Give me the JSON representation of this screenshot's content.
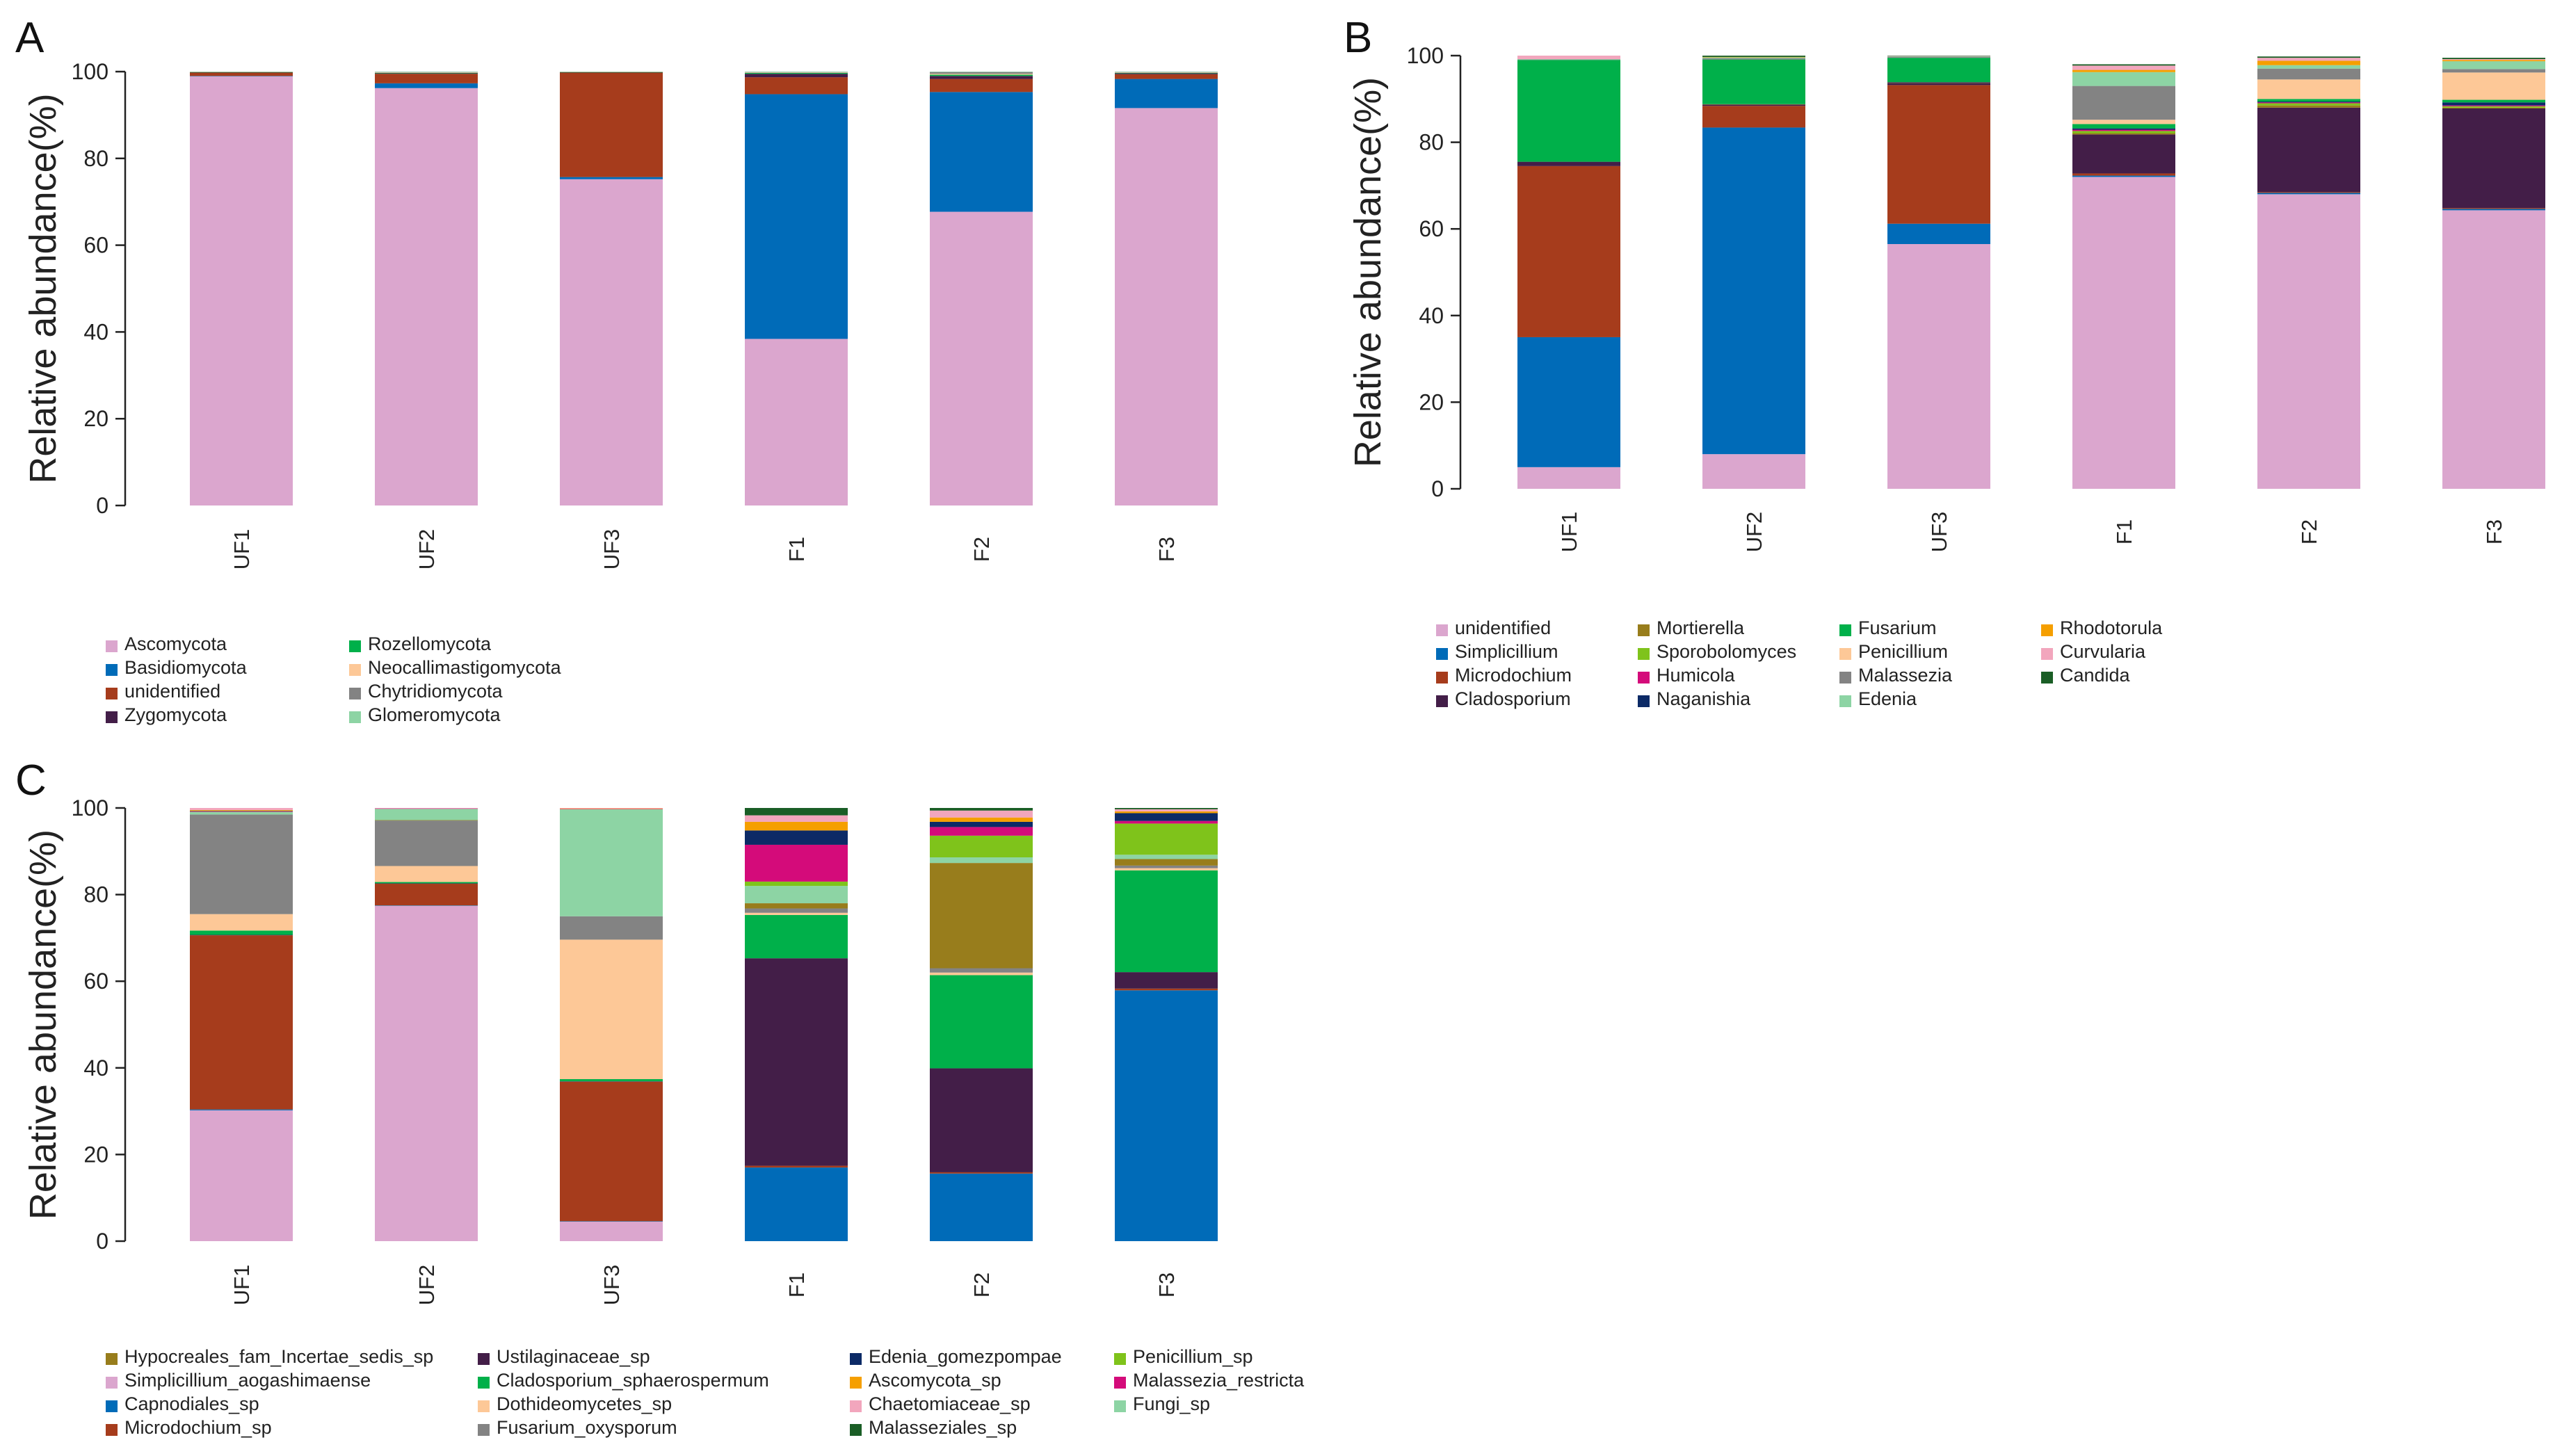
{
  "colors": {
    "pink": "#dba6ce",
    "blue": "#006bb8",
    "brown": "#a63c1c",
    "purple": "#431e48",
    "green": "#00b04a",
    "peach": "#fdc897",
    "gray": "#838383",
    "mint": "#8dd4a4",
    "olive": "#987d1c",
    "lime": "#7fc31b",
    "magenta": "#d40b7a",
    "navy": "#0c2a66",
    "orange": "#f59f00",
    "lightpink": "#f2a6bd",
    "darkgreen": "#1a5e26"
  },
  "chart_data": [
    {
      "id": "A",
      "type": "bar",
      "title": "A",
      "ylabel": "Relative abundance(%)",
      "ylim": [
        0,
        100
      ],
      "yticks": [
        0,
        20,
        40,
        60,
        80,
        100
      ],
      "categories": [
        "UF1",
        "UF2",
        "UF3",
        "F1",
        "F2",
        "F3"
      ],
      "series": [
        {
          "name": "Ascomycota",
          "color": "pink",
          "values": [
            98.9,
            96.2,
            75.2,
            38.4,
            67.7,
            91.6
          ]
        },
        {
          "name": "Basidiomycota",
          "color": "blue",
          "values": [
            0.1,
            1.1,
            0.5,
            56.4,
            27.6,
            6.7
          ]
        },
        {
          "name": "unidentified",
          "color": "brown",
          "values": [
            0.8,
            2.2,
            24.1,
            3.9,
            3.0,
            1.1
          ]
        },
        {
          "name": "Zygomycota",
          "color": "purple",
          "values": [
            0.05,
            0.1,
            0.05,
            0.8,
            0.7,
            0.2
          ]
        },
        {
          "name": "Rozellomycota",
          "color": "green",
          "values": [
            0.05,
            0.1,
            0.05,
            0.2,
            0.3,
            0.1
          ]
        },
        {
          "name": "Neocallimastigomycota",
          "color": "peach",
          "values": [
            0.05,
            0.1,
            0.05,
            0.1,
            0.2,
            0.1
          ]
        },
        {
          "name": "Chytridiomycota",
          "color": "gray",
          "values": [
            0.03,
            0.1,
            0.03,
            0.1,
            0.4,
            0.1
          ]
        },
        {
          "name": "Glomeromycota",
          "color": "mint",
          "values": [
            0.02,
            0.1,
            0.02,
            0.1,
            0.1,
            0.1
          ]
        }
      ],
      "legend": {
        "columns": [
          [
            "Ascomycota",
            "Basidiomycota",
            "unidentified",
            "Zygomycota"
          ],
          [
            "Rozellomycota",
            "Neocallimastigomycota",
            "Chytridiomycota",
            "Glomeromycota"
          ]
        ]
      }
    },
    {
      "id": "B",
      "type": "bar",
      "title": "B",
      "ylabel": "Relative abundance(%)",
      "ylim": [
        0,
        100
      ],
      "yticks": [
        0,
        20,
        40,
        60,
        80,
        100
      ],
      "categories": [
        "UF1",
        "UF2",
        "UF3",
        "F1",
        "F2",
        "F3"
      ],
      "series": [
        {
          "name": "unidentified",
          "color": "pink",
          "values": [
            5.0,
            8.0,
            56.5,
            72.0,
            68.0,
            64.3
          ]
        },
        {
          "name": "Simplicillium",
          "color": "blue",
          "values": [
            30.0,
            75.4,
            4.7,
            0.3,
            0.3,
            0.3
          ]
        },
        {
          "name": "Microdochium",
          "color": "brown",
          "values": [
            39.5,
            5.0,
            32.0,
            0.5,
            0.2,
            0.2
          ]
        },
        {
          "name": "Cladosporium",
          "color": "purple",
          "values": [
            1.0,
            0.3,
            0.5,
            9.0,
            19.5,
            23.0
          ]
        },
        {
          "name": "Mortierella",
          "color": "olive",
          "values": [
            0.0,
            0.1,
            0.1,
            0.3,
            0.5,
            0.2
          ]
        },
        {
          "name": "Sporobolomyces",
          "color": "lime",
          "values": [
            0.0,
            0.0,
            0.0,
            0.5,
            0.5,
            0.3
          ]
        },
        {
          "name": "Humicola",
          "color": "magenta",
          "values": [
            0.0,
            0.0,
            0.0,
            0.3,
            0.2,
            0.2
          ]
        },
        {
          "name": "Naganishia",
          "color": "navy",
          "values": [
            0.0,
            0.0,
            0.1,
            0.3,
            0.2,
            0.7
          ]
        },
        {
          "name": "Fusarium",
          "color": "green",
          "values": [
            23.5,
            10.3,
            5.6,
            1.0,
            0.6,
            0.6
          ]
        },
        {
          "name": "Penicillium",
          "color": "peach",
          "values": [
            0.0,
            0.0,
            0.0,
            1.0,
            4.5,
            6.3
          ]
        },
        {
          "name": "Malassezia",
          "color": "gray",
          "values": [
            0.1,
            0.3,
            0.2,
            7.8,
            2.5,
            0.8
          ]
        },
        {
          "name": "Edenia",
          "color": "mint",
          "values": [
            0.1,
            0.2,
            0.1,
            3.2,
            0.8,
            1.8
          ]
        },
        {
          "name": "Rhodotorula",
          "color": "orange",
          "values": [
            0.0,
            0.1,
            0.0,
            0.5,
            1.0,
            0.3
          ]
        },
        {
          "name": "Curvularia",
          "color": "lightpink",
          "values": [
            0.8,
            0.0,
            0.1,
            1.0,
            0.7,
            0.2
          ]
        },
        {
          "name": "Candida",
          "color": "darkgreen",
          "values": [
            0.0,
            0.3,
            0.1,
            0.3,
            0.3,
            0.3
          ]
        }
      ],
      "legend": {
        "columns": [
          [
            "unidentified",
            "Simplicillium",
            "Microdochium",
            "Cladosporium"
          ],
          [
            "Mortierella",
            "Sporobolomyces",
            "Humicola",
            "Naganishia"
          ],
          [
            "Fusarium",
            "Penicillium",
            "Malassezia",
            "Edenia"
          ],
          [
            "Rhodotorula",
            "Curvularia",
            "Candida"
          ]
        ]
      }
    },
    {
      "id": "C",
      "type": "bar",
      "title": "C",
      "ylabel": "Relative abundance(%)",
      "ylim": [
        0,
        100
      ],
      "yticks": [
        0,
        20,
        40,
        60,
        80,
        100
      ],
      "categories": [
        "UF1",
        "UF2",
        "UF3",
        "F1",
        "F2",
        "F3"
      ],
      "series": [
        {
          "name": "Simplicillium_aogashimaense",
          "color": "pink",
          "values": [
            30.2,
            77.4,
            4.5,
            0.0,
            0.0,
            0.0
          ]
        },
        {
          "name": "Capnodiales_sp",
          "color": "blue",
          "values": [
            0.2,
            0.1,
            0.1,
            17.0,
            15.6,
            57.9
          ]
        },
        {
          "name": "Microdochium_sp",
          "color": "brown",
          "values": [
            40.2,
            5.0,
            32.2,
            0.4,
            0.3,
            0.4
          ]
        },
        {
          "name": "Ustilaginaceae_sp",
          "color": "purple",
          "values": [
            0.1,
            0.1,
            0.1,
            47.9,
            24.0,
            3.8
          ]
        },
        {
          "name": "Cladosporium_sphaerospermum",
          "color": "green",
          "values": [
            1.0,
            0.3,
            0.5,
            10.0,
            21.5,
            23.5
          ]
        },
        {
          "name": "Dothideomycetes_sp",
          "color": "peach",
          "values": [
            3.8,
            3.7,
            32.2,
            0.5,
            0.6,
            0.5
          ]
        },
        {
          "name": "Fusarium_oxysporum",
          "color": "gray",
          "values": [
            23.0,
            10.5,
            5.4,
            1.0,
            1.0,
            0.6
          ]
        },
        {
          "name": "Hypocreales_fam_Incertae_sedis_sp",
          "color": "olive",
          "values": [
            0.0,
            0.1,
            0.0,
            1.2,
            24.3,
            1.5
          ]
        },
        {
          "name": "Fungi_sp",
          "color": "mint",
          "values": [
            0.6,
            2.6,
            24.7,
            4.0,
            1.3,
            1.0
          ]
        },
        {
          "name": "Penicillium_sp",
          "color": "lime",
          "values": [
            0.0,
            0.0,
            0.0,
            1.0,
            5.0,
            7.2
          ]
        },
        {
          "name": "Malassezia_restricta",
          "color": "magenta",
          "values": [
            0.1,
            0.1,
            0.1,
            8.5,
            2.0,
            0.6
          ]
        },
        {
          "name": "Edenia_gomezpompae",
          "color": "navy",
          "values": [
            0.1,
            0.0,
            0.0,
            3.3,
            1.2,
            1.8
          ]
        },
        {
          "name": "Ascomycota_sp",
          "color": "orange",
          "values": [
            0.2,
            0.0,
            0.1,
            2.0,
            1.0,
            0.4
          ]
        },
        {
          "name": "Chaetomiaceae_sp",
          "color": "lightpink",
          "values": [
            0.5,
            0.1,
            0.1,
            1.5,
            1.6,
            0.5
          ]
        },
        {
          "name": "Malasseziales_sp",
          "color": "darkgreen",
          "values": [
            0.0,
            0.0,
            0.0,
            1.7,
            0.6,
            0.3
          ]
        }
      ],
      "legend": {
        "columns": [
          [
            "Hypocreales_fam_Incertae_sedis_sp",
            "Simplicillium_aogashimaense",
            "Capnodiales_sp",
            "Microdochium_sp"
          ],
          [
            "Ustilaginaceae_sp",
            "Cladosporium_sphaerospermum",
            "Dothideomycetes_sp",
            "Fusarium_oxysporum"
          ],
          [
            "Edenia_gomezpompae",
            "Ascomycota_sp",
            "Chaetomiaceae_sp",
            "Malasseziales_sp"
          ],
          [
            "Penicillium_sp",
            "Malassezia_restricta",
            "Fungi_sp"
          ]
        ]
      }
    }
  ]
}
